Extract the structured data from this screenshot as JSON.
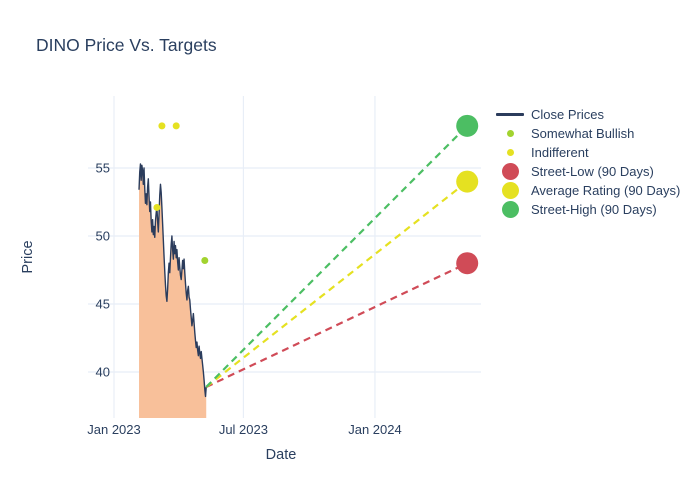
{
  "chart_data": {
    "type": "line",
    "title": "DINO Price Vs. Targets",
    "xlabel": "Date",
    "ylabel": "Price",
    "x_tick_labels": [
      "Jan 2023",
      "Jul 2023",
      "Jan 2024"
    ],
    "x_tick_days": [
      0,
      181,
      365
    ],
    "y_ticks": [
      40,
      45,
      50,
      55
    ],
    "grid": true,
    "legend_position": "right",
    "close_prices": {
      "name": "Close Prices",
      "color": "#2b3c5c",
      "fill_color": "#f8c09a",
      "day_zero": "Jan 2023",
      "day_start": 35,
      "values": [
        53.4,
        54.7,
        55.3,
        54.1,
        55.2,
        54.8,
        53.8,
        55.0,
        53.5,
        52.4,
        53.1,
        52.3,
        53.6,
        54.2,
        52.9,
        51.8,
        52.5,
        51.1,
        50.3,
        51.2,
        50.1,
        50.7,
        49.9,
        51.1,
        51.7,
        52.1,
        51.1,
        50.3,
        51.6,
        53.0,
        53.8,
        53.2,
        52.1,
        50.9,
        49.7,
        48.5,
        47.4,
        46.4,
        45.6,
        45.2,
        46.1,
        47.3,
        48.0,
        47.3,
        48.4,
        49.4,
        50.0,
        49.0,
        48.3,
        49.6,
        48.7,
        49.3,
        48.4,
        49.0,
        48.1,
        47.5,
        48.4,
        47.7,
        47.1,
        46.8,
        47.5,
        48.2,
        47.6,
        48.3,
        47.3,
        46.5,
        45.8,
        45.3,
        46.0,
        46.3,
        45.5,
        45.3,
        44.6,
        44.0,
        43.4,
        43.8,
        44.3,
        43.6,
        42.9,
        42.3,
        41.8,
        42.2,
        41.6,
        41.2,
        41.9,
        41.4,
        41.0,
        41.5,
        41.0,
        40.5,
        40.0,
        39.4,
        38.7,
        38.2,
        38.9
      ]
    },
    "ratings": [
      {
        "label": "Indifferent",
        "day": 60,
        "price": 52.1
      },
      {
        "label": "Indifferent",
        "day": 67,
        "price": 58.1
      },
      {
        "label": "Indifferent",
        "day": 87,
        "price": 58.1
      },
      {
        "label": "Somewhat Bullish",
        "day": 127,
        "price": 48.2
      }
    ],
    "rating_colors": {
      "Somewhat Bullish": "#a2d32f",
      "Indifferent": "#e5e121"
    },
    "targets": {
      "from_day": 129,
      "from_price": 38.9,
      "day": 494,
      "items": [
        {
          "name": "Street-Low (90 Days)",
          "price": 48,
          "color": "#d04b57"
        },
        {
          "name": "Average Rating (90 Days)",
          "price": 54,
          "color": "#e5e121"
        },
        {
          "name": "Street-High (90 Days)",
          "price": 58.1,
          "color": "#4cbe63"
        }
      ]
    }
  },
  "legend": {
    "items": [
      {
        "label": "Close Prices",
        "marker": "line",
        "color": "#2b3c5c"
      },
      {
        "label": "Somewhat Bullish",
        "marker": "dot-small",
        "color": "#a2d32f"
      },
      {
        "label": "Indifferent",
        "marker": "dot-small",
        "color": "#e5e121"
      },
      {
        "label": "Street-Low (90 Days)",
        "marker": "dot-large",
        "color": "#d04b57"
      },
      {
        "label": "Average Rating (90 Days)",
        "marker": "dot-large",
        "color": "#e5e121"
      },
      {
        "label": "Street-High (90 Days)",
        "marker": "dot-large",
        "color": "#4cbe63"
      }
    ]
  }
}
